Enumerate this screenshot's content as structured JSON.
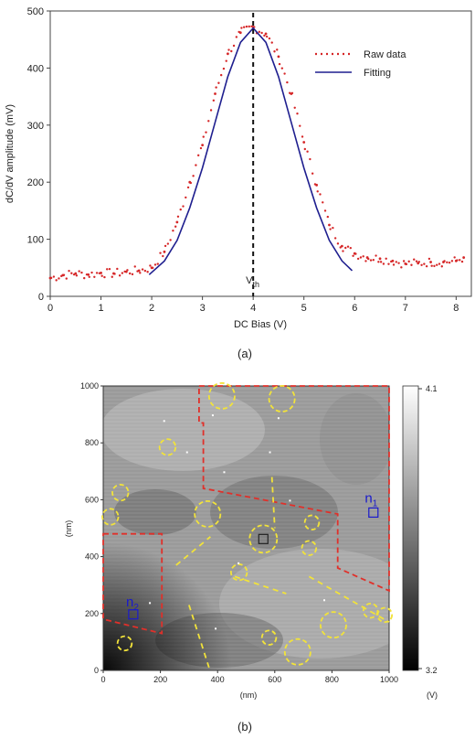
{
  "chart_data": [
    {
      "type": "line",
      "panel_caption": "(a)",
      "xlabel": "DC Bias (V)",
      "ylabel": "dC/dV amplitude (mV)",
      "xlim": [
        0,
        8.3
      ],
      "ylim": [
        0,
        500
      ],
      "xticks": [
        "0",
        "1",
        "2",
        "3",
        "4",
        "5",
        "6",
        "7",
        "8"
      ],
      "yticks": [
        "0",
        "100",
        "200",
        "300",
        "400",
        "500"
      ],
      "legend": [
        {
          "name": "Raw data",
          "color": "#d62728",
          "style": "dotted"
        },
        {
          "name": "Fitting",
          "color": "#1f1f8f",
          "style": "solid"
        }
      ],
      "legend_position": "top-right",
      "annotation": {
        "text": "V",
        "sub": "th",
        "x": 4.0
      },
      "series": [
        {
          "name": "Raw data",
          "color": "#d62728",
          "x": [
            0.0,
            0.25,
            0.5,
            0.75,
            1.0,
            1.25,
            1.5,
            1.75,
            2.0,
            2.25,
            2.5,
            2.75,
            3.0,
            3.25,
            3.5,
            3.75,
            4.0,
            4.25,
            4.5,
            4.75,
            5.0,
            5.25,
            5.5,
            5.75,
            6.0,
            6.25,
            6.5,
            6.75,
            7.0,
            7.25,
            7.5,
            7.75,
            8.0,
            8.15
          ],
          "y": [
            32,
            37,
            40,
            38,
            41,
            40,
            43,
            45,
            50,
            78,
            130,
            200,
            265,
            355,
            425,
            462,
            472,
            460,
            420,
            355,
            270,
            195,
            125,
            88,
            75,
            68,
            66,
            62,
            57,
            58,
            60,
            60,
            62,
            68
          ]
        },
        {
          "name": "Fitting",
          "color": "#1f1f8f",
          "x": [
            1.95,
            2.25,
            2.5,
            2.75,
            3.0,
            3.25,
            3.5,
            3.75,
            4.0,
            4.25,
            4.5,
            4.75,
            5.0,
            5.25,
            5.5,
            5.75,
            5.95
          ],
          "y": [
            38,
            62,
            98,
            155,
            225,
            305,
            385,
            445,
            470,
            445,
            385,
            305,
            225,
            155,
            98,
            62,
            45
          ]
        }
      ]
    },
    {
      "type": "heatmap",
      "panel_caption": "(b)",
      "xlabel": "(nm)",
      "ylabel": "(nm)",
      "xlim": [
        0,
        1000
      ],
      "ylim": [
        0,
        1000
      ],
      "xticks": [
        "0",
        "200",
        "400",
        "600",
        "800",
        "1000"
      ],
      "yticks": [
        "0",
        "200",
        "400",
        "600",
        "800",
        "1000"
      ],
      "colorbar": {
        "min": "3.2",
        "max": "4.1",
        "unit": "(V)",
        "colormap": "gray"
      },
      "labels": [
        {
          "text": "n",
          "sub": "1",
          "x": 915,
          "y": 590,
          "color": "#1a1acc"
        },
        {
          "text": "n",
          "sub": "2",
          "x": 80,
          "y": 225,
          "color": "#1a1acc"
        }
      ],
      "boxes": [
        {
          "name": "n1",
          "x": 945,
          "y": 555
        },
        {
          "name": "n2",
          "x": 105,
          "y": 197
        },
        {
          "name": "center",
          "x": 560,
          "y": 462
        }
      ],
      "circles": [
        {
          "x": 415,
          "y": 965,
          "r": 45
        },
        {
          "x": 625,
          "y": 955,
          "r": 45
        },
        {
          "x": 225,
          "y": 785,
          "r": 28
        },
        {
          "x": 60,
          "y": 625,
          "r": 28
        },
        {
          "x": 25,
          "y": 540,
          "r": 28
        },
        {
          "x": 365,
          "y": 550,
          "r": 45
        },
        {
          "x": 560,
          "y": 462,
          "r": 48
        },
        {
          "x": 730,
          "y": 520,
          "r": 25
        },
        {
          "x": 720,
          "y": 430,
          "r": 25
        },
        {
          "x": 475,
          "y": 345,
          "r": 28
        },
        {
          "x": 805,
          "y": 160,
          "r": 45
        },
        {
          "x": 935,
          "y": 210,
          "r": 25
        },
        {
          "x": 985,
          "y": 195,
          "r": 25
        },
        {
          "x": 580,
          "y": 115,
          "r": 25
        },
        {
          "x": 680,
          "y": 65,
          "r": 45
        },
        {
          "x": 75,
          "y": 95,
          "r": 25
        }
      ]
    }
  ]
}
